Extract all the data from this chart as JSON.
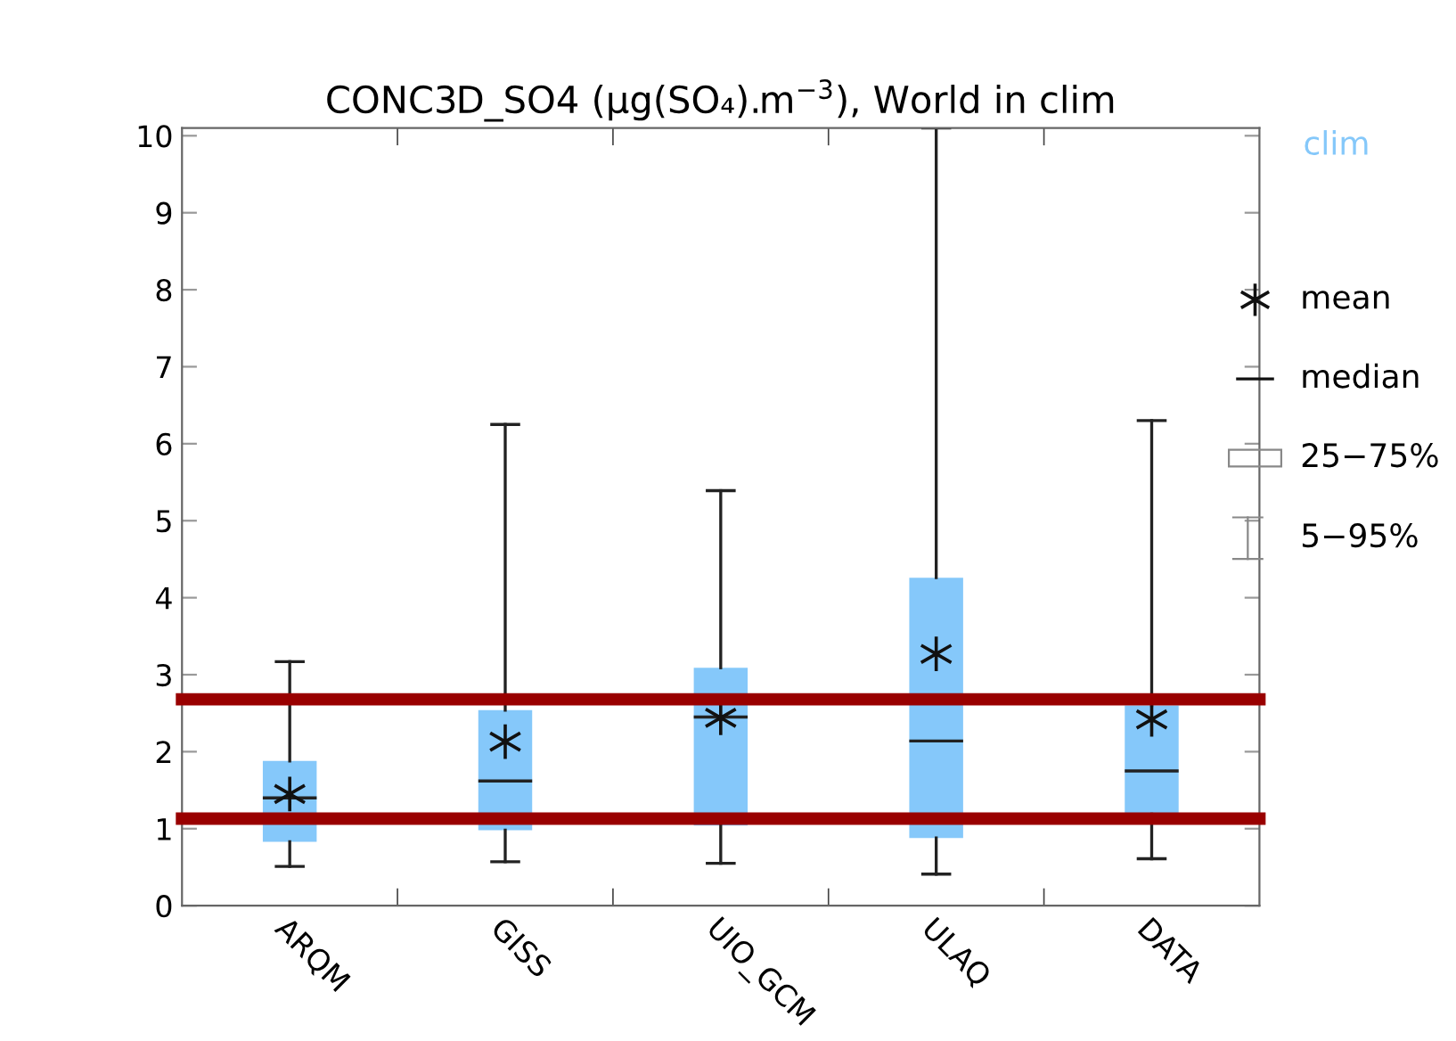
{
  "chart_data": {
    "type": "box",
    "title": "CONC3D_SO4 (μg(SO₄).m$^{−3}$), World in clim",
    "categories": [
      "ARQM",
      "GISS",
      "UIO_GCM",
      "ULAQ",
      "DATA"
    ],
    "series": [
      {
        "name": "clim",
        "color": "#85c8fa",
        "boxes": [
          {
            "low": 0.51,
            "q1": 0.83,
            "median": 1.4,
            "q3": 1.88,
            "high": 3.17,
            "mean": 1.45
          },
          {
            "low": 0.57,
            "q1": 0.98,
            "median": 1.62,
            "q3": 2.54,
            "high": 6.25,
            "mean": 2.13
          },
          {
            "low": 0.55,
            "q1": 1.04,
            "median": 2.45,
            "q3": 3.09,
            "high": 5.39,
            "mean": 2.44
          },
          {
            "low": 0.41,
            "q1": 0.88,
            "median": 2.14,
            "q3": 4.26,
            "high": 10.1,
            "mean": 3.27
          },
          {
            "low": 0.61,
            "q1": 1.19,
            "median": 1.75,
            "q3": 2.6,
            "high": 6.3,
            "mean": 2.42
          }
        ]
      }
    ],
    "ylim": [
      0,
      10.1
    ],
    "yticks": [
      0,
      1,
      2,
      3,
      4,
      5,
      6,
      7,
      8,
      9,
      10
    ],
    "ref_lines": [
      {
        "axis": "y",
        "value": 2.68,
        "color": "#990000"
      },
      {
        "axis": "y",
        "value": 1.13,
        "color": "#990000"
      }
    ],
    "annotations": [
      "mean",
      "median",
      "25−75%",
      "5−95%"
    ],
    "legend": "top right",
    "grid": false
  }
}
